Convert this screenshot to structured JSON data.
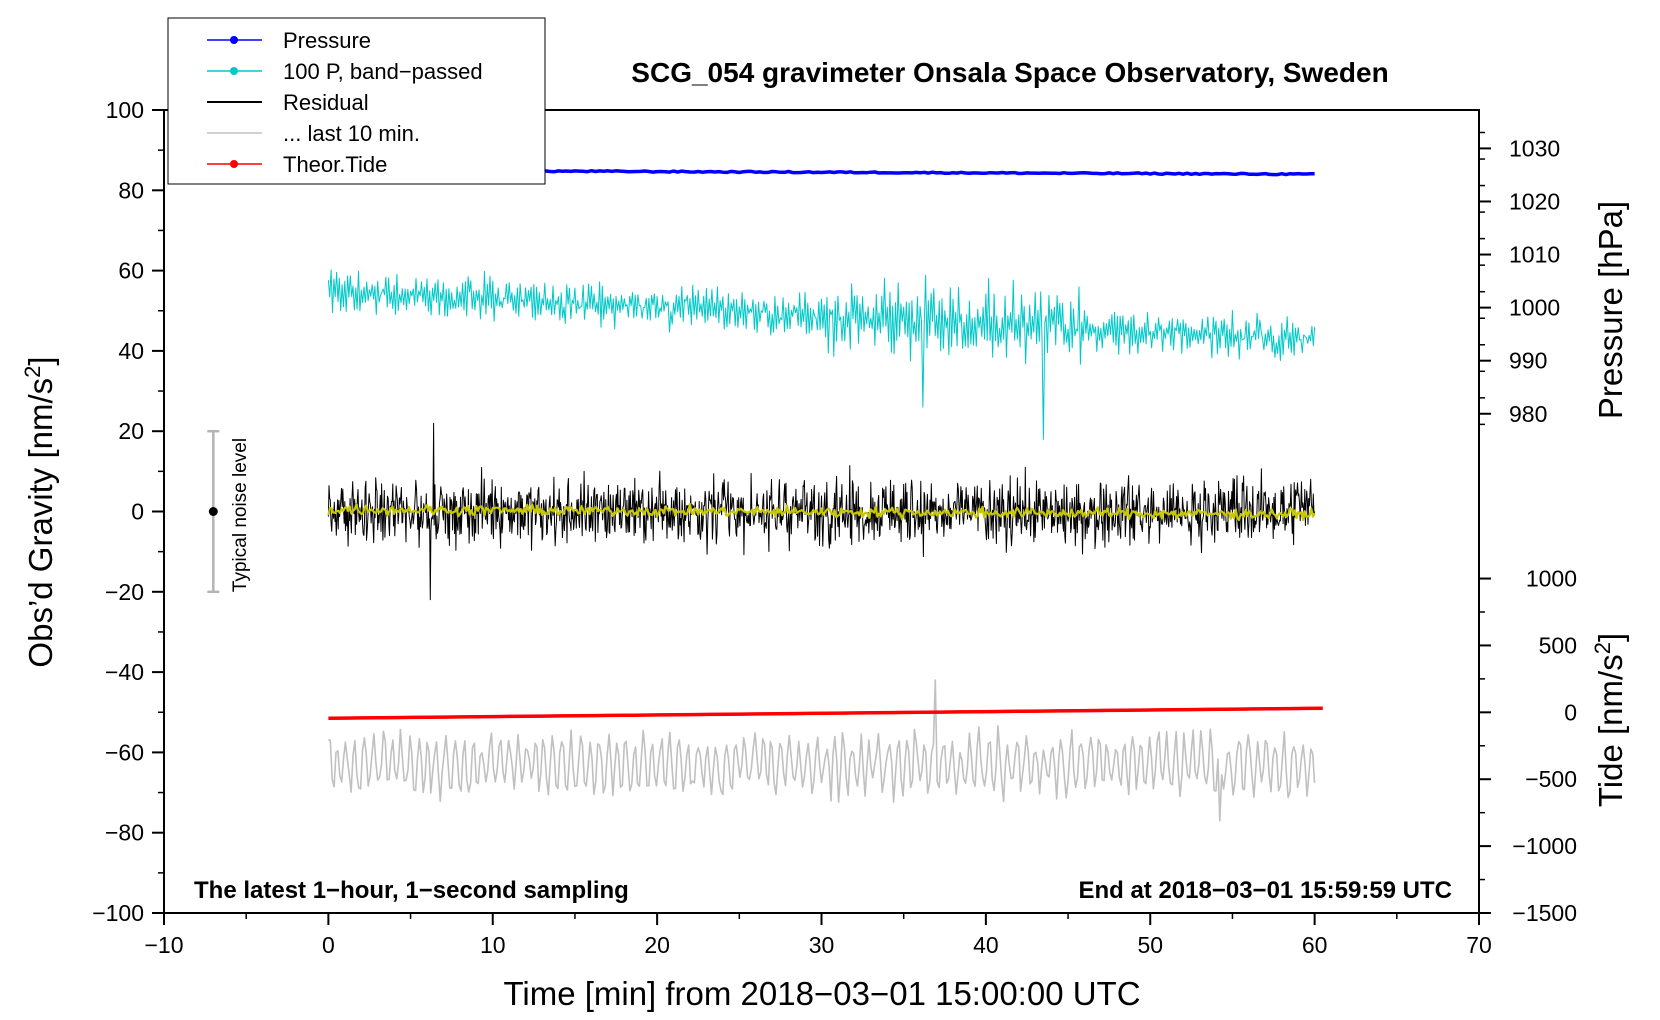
{
  "chart_data": {
    "type": "line",
    "title": "SCG_054 gravimeter Onsala Space Observatory, Sweden",
    "xlabel": "Time [min] from 2018−03−01 15:00:00 UTC",
    "ylabel_main": "Obs’d Gravity [nm/s",
    "ylabel_main_sup": "2",
    "ylabel_main_close": "]",
    "ylabel_pressure": "Pressure [hPa]",
    "ylabel_tide": "Tide [nm/s",
    "ylabel_tide_sup": "2",
    "ylabel_tide_close": "]",
    "xlim": [
      -10,
      70
    ],
    "ylim": [
      -100,
      100
    ],
    "pressure_axis": {
      "range_hpa": [
        978,
        1033
      ],
      "ticks": [
        980,
        990,
        1000,
        1010,
        1020,
        1030
      ],
      "maps_to_gravity": [
        21.7,
        94.4
      ]
    },
    "tide_axis": {
      "range_nms2": [
        -1500,
        1000
      ],
      "ticks": [
        -1500,
        -1000,
        -500,
        0,
        500,
        1000
      ],
      "maps_to_gravity": [
        -100,
        -16.7
      ]
    },
    "x_ticks": [
      -10,
      0,
      10,
      20,
      30,
      40,
      50,
      60,
      70
    ],
    "x_tick_labels": [
      "−10",
      "0",
      "10",
      "20",
      "30",
      "40",
      "50",
      "60",
      "70"
    ],
    "y_ticks": [
      -100,
      -80,
      -60,
      -40,
      -20,
      0,
      20,
      40,
      60,
      80,
      100
    ],
    "y_tick_labels": [
      "−100",
      "−80",
      "−60",
      "−40",
      "−20",
      "0",
      "20",
      "40",
      "60",
      "80",
      "100"
    ],
    "pressure_tick_labels": [
      "980",
      "990",
      "1000",
      "1010",
      "1020",
      "1030"
    ],
    "tide_tick_labels": [
      "−1500",
      "−1000",
      "−500",
      "0",
      "500",
      "1000"
    ],
    "annotations": {
      "bottom_left": "The latest 1−hour, 1−second sampling",
      "bottom_right": "End at 2018−03−01 15:59:59 UTC",
      "noise_label": "Typical noise level"
    },
    "noise_bar": {
      "x": -7,
      "y_low": -20,
      "y_high": 20,
      "center": 0
    },
    "legend_position": "top-left",
    "series": [
      {
        "name": "Pressure",
        "color": "#0000ff",
        "marker": true,
        "x_range": [
          0,
          60
        ],
        "y_start_gravity": 85,
        "y_end_gravity": 84,
        "axis": "pressure",
        "approx_hpa": 1024.5
      },
      {
        "name": "100 P, band−passed",
        "color": "#00c8c8",
        "marker": true,
        "x_range": [
          0,
          60
        ],
        "y_start_gravity": 55,
        "y_end_gravity": 43,
        "amplitude_gravity": 7,
        "min_gravity": 18
      },
      {
        "name": "Residual",
        "color": "#000000",
        "marker": false,
        "x_range": [
          0,
          60
        ],
        "y_center_gravity": 0,
        "amplitude_gravity": 10,
        "extremes_gravity": [
          -22,
          22
        ]
      },
      {
        "name": "... last 10 min.",
        "color": "#c0c0c0",
        "marker": false,
        "x_range": [
          0,
          60
        ],
        "y_center_gravity": -63,
        "amplitude_gravity": 7,
        "extremes_gravity": [
          -77,
          -42
        ]
      },
      {
        "name": "Theor.Tide",
        "color": "#ff0000",
        "marker": true,
        "x_range": [
          0,
          60.5
        ],
        "y_start_gravity": -51.5,
        "y_end_gravity": -49,
        "axis": "tide",
        "approx_nms2": [
          -45,
          25
        ]
      },
      {
        "name": "smoothed residual",
        "color": "#c8c800",
        "marker": false,
        "in_legend": false,
        "x_range": [
          0,
          60
        ],
        "y_center_gravity": 0.5,
        "amplitude_gravity": 1.2
      }
    ]
  }
}
